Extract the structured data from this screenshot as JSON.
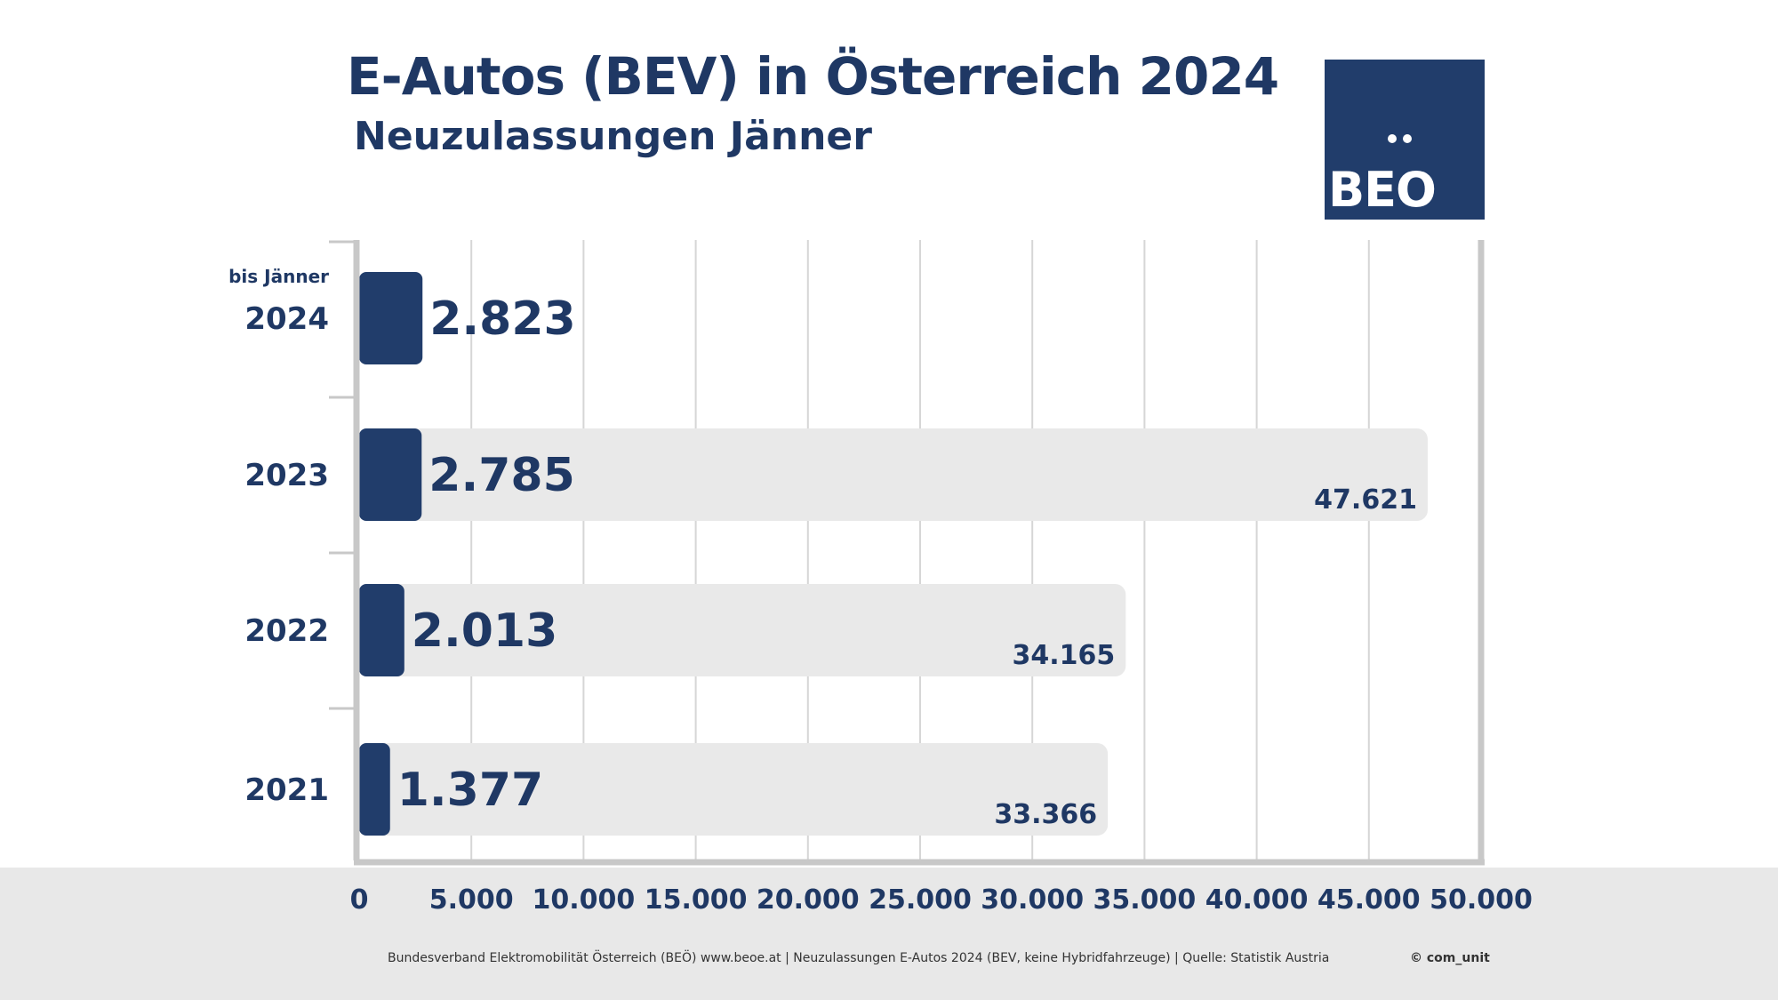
{
  "header": {
    "title": "E-Autos (BEV) in Österreich 2024",
    "subtitle": "Neuzulassungen Jänner"
  },
  "logo": {
    "text": "BEO"
  },
  "footer": {
    "note": "Bundesverband Elektromobilität Österreich (BEÖ) www.beoe.at | Neuzulassungen E-Autos 2024 (BEV, keine Hybridfahrzeuge) | Quelle: Statistik Austria",
    "copyright": "© com_unit"
  },
  "colors": {
    "bar": "#213d6b",
    "background_bar": "#e9e9e9",
    "text": "#1f3864",
    "axis": "#c8c8c8",
    "grid": "#d6d6d6"
  },
  "chart_data": {
    "type": "bar",
    "orientation": "horizontal",
    "categories": [
      "2024",
      "2023",
      "2022",
      "2021"
    ],
    "category_prefix": {
      "2024": "bis Jänner"
    },
    "series": [
      {
        "name": "",
        "values": [
          2823,
          2785,
          2013,
          1377
        ],
        "labels": [
          "2.823",
          "2.785",
          "2.013",
          "1.377"
        ]
      },
      {
        "name": "",
        "values": [
          null,
          47621,
          34165,
          33366
        ],
        "labels": [
          "",
          "47.621",
          "34.165",
          "33.366"
        ]
      }
    ],
    "xlim": [
      0,
      50000
    ],
    "xticks": [
      0,
      5000,
      10000,
      15000,
      20000,
      25000,
      30000,
      35000,
      40000,
      45000,
      50000
    ],
    "xtick_labels": [
      "0",
      "5.000",
      "10.000",
      "15.000",
      "20.000",
      "25.000",
      "30.000",
      "35.000",
      "40.000",
      "45.000",
      "50.000"
    ],
    "grid": true
  }
}
